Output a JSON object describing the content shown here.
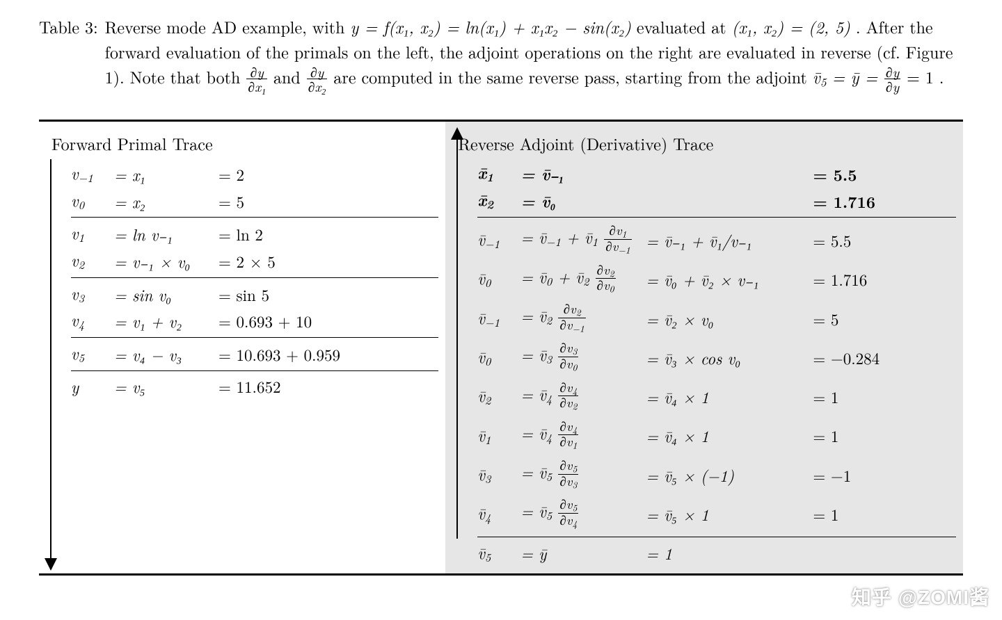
{
  "caption": {
    "label": "Table 3:",
    "line1_a": "Reverse mode AD example, with ",
    "line1_b": " evaluated at ",
    "line1_c": ".  After the forward evaluation of the primals on the left, the adjoint operations on the right are evaluated in reverse (cf. Figure 1).  Note that both ",
    "line1_d": " and ",
    "line1_e": " are computed in the same reverse pass, starting from the adjoint ",
    "line1_f": "."
  },
  "math": {
    "y_eq": "y = f(x₁, x₂) = ln(x₁) + x₁x₂ − sin(x₂)",
    "point": "(x₁, x₂) = (2, 5)",
    "dydx1_num": "∂y",
    "dydx1_den": "∂x₁",
    "dydx2_num": "∂y",
    "dydx2_den": "∂x₂",
    "adjoint_seed_a": "v̄",
    "adjoint_seed_a_sub": "5",
    "adjoint_seed_b": " = ȳ = ",
    "dydy_num": "∂y",
    "dydy_den": "∂y",
    "adjoint_seed_c": " = 1"
  },
  "colors": {
    "bg_left": "#ffffff",
    "bg_right": "#e6e6e6",
    "rule": "#000000",
    "text": "#000000",
    "watermark": "#ffffff"
  },
  "fonts": {
    "body_pt": 24,
    "row_pt": 23,
    "family": "Latin Modern / Computer Modern serif"
  },
  "forward": {
    "title": "Forward Primal Trace",
    "groups": [
      [
        {
          "v": "v",
          "sub": "−1",
          "expr": "= x₁",
          "val": "= 2"
        },
        {
          "v": "v",
          "sub": "0",
          "expr": "= x₂",
          "val": "= 5"
        }
      ],
      [
        {
          "v": "v",
          "sub": "1",
          "expr": "= ln v₋₁",
          "val": "= ln 2"
        },
        {
          "v": "v",
          "sub": "2",
          "expr": "= v₋₁ × v₀",
          "val": "= 2 × 5"
        }
      ],
      [
        {
          "v": "v",
          "sub": "3",
          "expr": "= sin v₀",
          "val": "= sin 5"
        },
        {
          "v": "v",
          "sub": "4",
          "expr": "= v₁ + v₂",
          "val": "= 0.693 + 10"
        }
      ],
      [
        {
          "v": "v",
          "sub": "5",
          "expr": "= v₄ − v₃",
          "val": "= 10.693 + 0.959"
        }
      ],
      [
        {
          "v": "y",
          "sub": "",
          "expr": "= v₅",
          "val": "= 11.652"
        }
      ]
    ]
  },
  "reverse": {
    "title": "Reverse Adjoint (Derivative) Trace",
    "head": [
      {
        "v": "x̄",
        "sub": "1",
        "expr": "= v̄₋₁",
        "mid": "",
        "val": "= 5.5",
        "bold": true
      },
      {
        "v": "x̄",
        "sub": "2",
        "expr": "= v̄₀",
        "mid": "",
        "val": "= 1.716",
        "bold": true
      }
    ],
    "body": [
      {
        "v": "v̄",
        "sub": "−1",
        "expr_html": "= v̄<span class='sub'>−1</span> + v̄<span class='sub'>1</span> <span class='frac'><span class='num'>∂v<span class=\"sub\">1</span></span><span class='den'>∂v<span class=\"sub\">−1</span></span></span>",
        "mid": "= v̄₋₁ + v̄₁/v₋₁",
        "val": "= 5.5"
      },
      {
        "v": "v̄",
        "sub": "0",
        "expr_html": "= v̄<span class='sub'>0</span> + v̄<span class='sub'>2</span> <span class='frac'><span class='num'>∂v<span class=\"sub\">2</span></span><span class='den'>∂v<span class=\"sub\">0</span></span></span>",
        "mid": "= v̄₀ + v̄₂ × v₋₁",
        "val": "= 1.716"
      },
      {
        "v": "v̄",
        "sub": "−1",
        "expr_html": "= v̄<span class='sub'>2</span> <span class='frac'><span class='num'>∂v<span class=\"sub\">2</span></span><span class='den'>∂v<span class=\"sub\">−1</span></span></span>",
        "mid": "= v̄₂ × v₀",
        "val": "= 5"
      },
      {
        "v": "v̄",
        "sub": "0",
        "expr_html": "= v̄<span class='sub'>3</span> <span class='frac'><span class='num'>∂v<span class=\"sub\">3</span></span><span class='den'>∂v<span class=\"sub\">0</span></span></span>",
        "mid": "= v̄₃ × cos v₀",
        "val": "= −0.284"
      },
      {
        "v": "v̄",
        "sub": "2",
        "expr_html": "= v̄<span class='sub'>4</span> <span class='frac'><span class='num'>∂v<span class=\"sub\">4</span></span><span class='den'>∂v<span class=\"sub\">2</span></span></span>",
        "mid": "= v̄₄ × 1",
        "val": "= 1"
      },
      {
        "v": "v̄",
        "sub": "1",
        "expr_html": "= v̄<span class='sub'>4</span> <span class='frac'><span class='num'>∂v<span class=\"sub\">4</span></span><span class='den'>∂v<span class=\"sub\">1</span></span></span>",
        "mid": "= v̄₄ × 1",
        "val": "= 1"
      },
      {
        "v": "v̄",
        "sub": "3",
        "expr_html": "= v̄<span class='sub'>5</span> <span class='frac'><span class='num'>∂v<span class=\"sub\">5</span></span><span class='den'>∂v<span class=\"sub\">3</span></span></span>",
        "mid": "= v̄₅ × (−1)",
        "val": "= −1"
      },
      {
        "v": "v̄",
        "sub": "4",
        "expr_html": "= v̄<span class='sub'>5</span> <span class='frac'><span class='num'>∂v<span class=\"sub\">5</span></span><span class='den'>∂v<span class=\"sub\">4</span></span></span>",
        "mid": "= v̄₅ × 1",
        "val": "= 1"
      }
    ],
    "foot": [
      {
        "v": "v̄",
        "sub": "5",
        "expr": "= ȳ",
        "mid": "= 1",
        "val": ""
      }
    ]
  },
  "watermark": "知乎 @ZOMI酱"
}
